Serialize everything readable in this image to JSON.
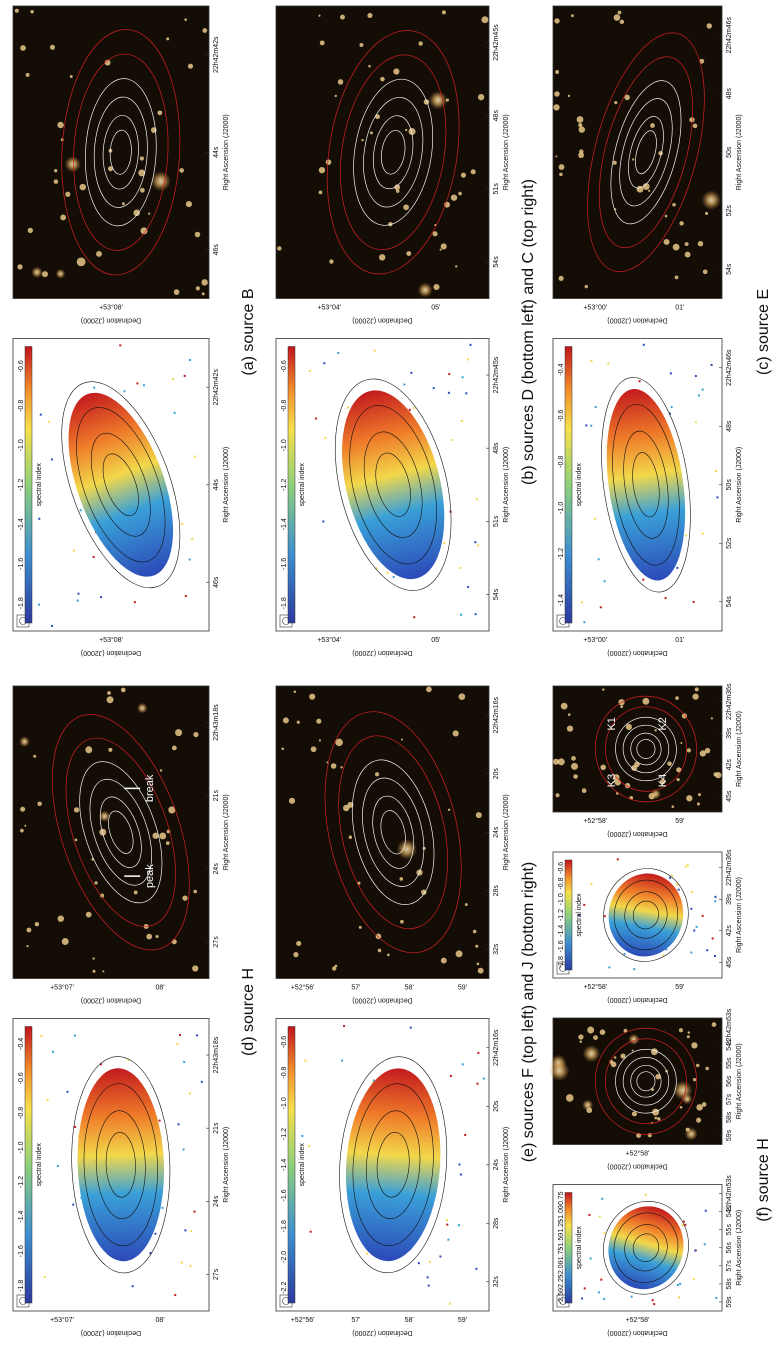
{
  "panels": [
    {
      "caption": "(a) source B",
      "maps": [
        {
          "colorbar_label": "spectral index",
          "colorbar_ticks": [
            "-1.8",
            "-1.6",
            "-1.4",
            "-1.2",
            "-1.0",
            "-0.8",
            "-0.6"
          ],
          "ra_ticks": [
            "46s",
            "44s",
            "22h42m42s"
          ],
          "dec_ticks": [
            "+53°08'"
          ],
          "ra_label": "Right Ascension (J2000)",
          "dec_label": "Declination (J2000)"
        },
        {
          "ra_ticks": [
            "46s",
            "44s",
            "22h42m42s"
          ],
          "dec_ticks": [
            "+53°08'"
          ],
          "ra_label": "Right Ascension (J2000)",
          "dec_label": "Declination (J2000)"
        }
      ]
    },
    {
      "caption": "(b) sources D (bottom left) and C (top right)",
      "maps": [
        {
          "colorbar_label": "spectral index",
          "colorbar_ticks": [
            "-1.8",
            "-1.6",
            "-1.4",
            "-1.2",
            "-1.0",
            "-0.8",
            "-0.6"
          ],
          "ra_ticks": [
            "54s",
            "51s",
            "48s",
            "22h42m45s"
          ],
          "dec_ticks": [
            "+53°04'",
            "05'"
          ],
          "ra_label": "Right Ascension (J2000)",
          "dec_label": "Declination (J2000)"
        },
        {
          "ra_ticks": [
            "54s",
            "51s",
            "48s",
            "22h42m45s"
          ],
          "dec_ticks": [
            "+53°04'",
            "05'"
          ],
          "ra_label": "Right Ascension (J2000)",
          "dec_label": "Declination (J2000)"
        }
      ]
    },
    {
      "caption": "(c) source E",
      "maps": [
        {
          "colorbar_label": "spectral index",
          "colorbar_ticks": [
            "-1.4",
            "-1.2",
            "-1.0",
            "-0.8",
            "-0.6",
            "-0.4"
          ],
          "ra_ticks": [
            "54s",
            "52s",
            "50s",
            "48s",
            "22h42m46s"
          ],
          "dec_ticks": [
            "+53°00'",
            "01'"
          ],
          "ra_label": "Right Ascension (J2000)",
          "dec_label": "Declination (J2000)"
        },
        {
          "ra_ticks": [
            "54s",
            "52s",
            "50s",
            "48s",
            "22h42m46s"
          ],
          "dec_ticks": [
            "+53°00'",
            "01'"
          ],
          "ra_label": "Right Ascension (J2000)",
          "dec_label": "Declination (J2000)"
        }
      ]
    },
    {
      "caption": "(d) source H",
      "maps": [
        {
          "colorbar_label": "spectral index",
          "colorbar_ticks": [
            "-1.8",
            "-1.6",
            "-1.4",
            "-1.2",
            "-1.0",
            "-0.8",
            "-0.6",
            "-0.4"
          ],
          "ra_ticks": [
            "27s",
            "24s",
            "21s",
            "22h43m18s"
          ],
          "dec_ticks": [
            "+53°07'",
            "08'"
          ],
          "ra_label": "Right Ascension (J2000)",
          "dec_label": "Declination (J2000)"
        },
        {
          "ra_ticks": [
            "27s",
            "24s",
            "21s",
            "22h43m18s"
          ],
          "dec_ticks": [
            "+53°07'",
            "08'"
          ],
          "ra_label": "Right Ascension (J2000)",
          "dec_label": "Declination (J2000)",
          "annotations": [
            "break",
            "peak"
          ]
        }
      ]
    },
    {
      "caption": "(e) sources F (top left) and J (bottom right)",
      "maps": [
        {
          "colorbar_label": "spectral index",
          "colorbar_ticks": [
            "-2.2",
            "-2.0",
            "-1.8",
            "-1.6",
            "-1.4",
            "-1.2",
            "-1.0",
            "-0.8",
            "-0.6"
          ],
          "ra_ticks": [
            "32s",
            "28s",
            "24s",
            "20s",
            "22h42m16s"
          ],
          "dec_ticks": [
            "+52°56'",
            "57'",
            "58'",
            "59'"
          ],
          "ra_label": "Right Ascension (J2000)",
          "dec_label": "Declination (J2000)"
        },
        {
          "ra_ticks": [
            "32s",
            "28s",
            "24s",
            "20s",
            "22h42m16s"
          ],
          "dec_ticks": [
            "+52°56'",
            "57'",
            "58'",
            "59'"
          ],
          "ra_label": "Right Ascension (J2000)",
          "dec_label": "Declination (J2000)"
        },
        {
          "colorbar_label": "spectral index",
          "colorbar_ticks": [
            "-1.8",
            "-1.6",
            "-1.4",
            "-1.2",
            "-1.0",
            "-0.8",
            "-0.6"
          ],
          "ra_ticks": [
            "45s",
            "42s",
            "39s",
            "22h42m36s"
          ],
          "dec_ticks": [
            "+52°58'",
            "59'"
          ],
          "ra_label": "Right Ascension (J2000)",
          "dec_label": "Declination (J2000)"
        },
        {
          "ra_ticks": [
            "45s",
            "42s",
            "39s",
            "22h42m36s"
          ],
          "dec_ticks": [
            "+52°58'",
            "59'"
          ],
          "ra_label": "Right Ascension (J2000)",
          "dec_label": "Declination (J2000)",
          "annotations": [
            "K1",
            "K2",
            "K3",
            "K4"
          ]
        }
      ]
    },
    {
      "caption": "(f) source H",
      "maps": [
        {
          "colorbar_label": "spectral index",
          "colorbar_ticks": [
            "-2.50",
            "-2.25",
            "-2.00",
            "-1.75",
            "-1.50",
            "-1.25",
            "-1.00",
            "-0.75"
          ],
          "ra_ticks": [
            "59s",
            "58s",
            "57s",
            "56s",
            "55s",
            "54s",
            "22h42m53s"
          ],
          "dec_ticks": [
            "+52°58'"
          ],
          "ra_label": "Right Ascension (J2000)",
          "dec_label": "Declination (J2000)"
        },
        {
          "ra_ticks": [
            "59s",
            "58s",
            "57s",
            "56s",
            "55s",
            "54s",
            "22h42m53s"
          ],
          "dec_ticks": [
            "+52°58'"
          ],
          "ra_label": "Right Ascension (J2000)",
          "dec_label": "Declination (J2000)"
        }
      ]
    }
  ]
}
